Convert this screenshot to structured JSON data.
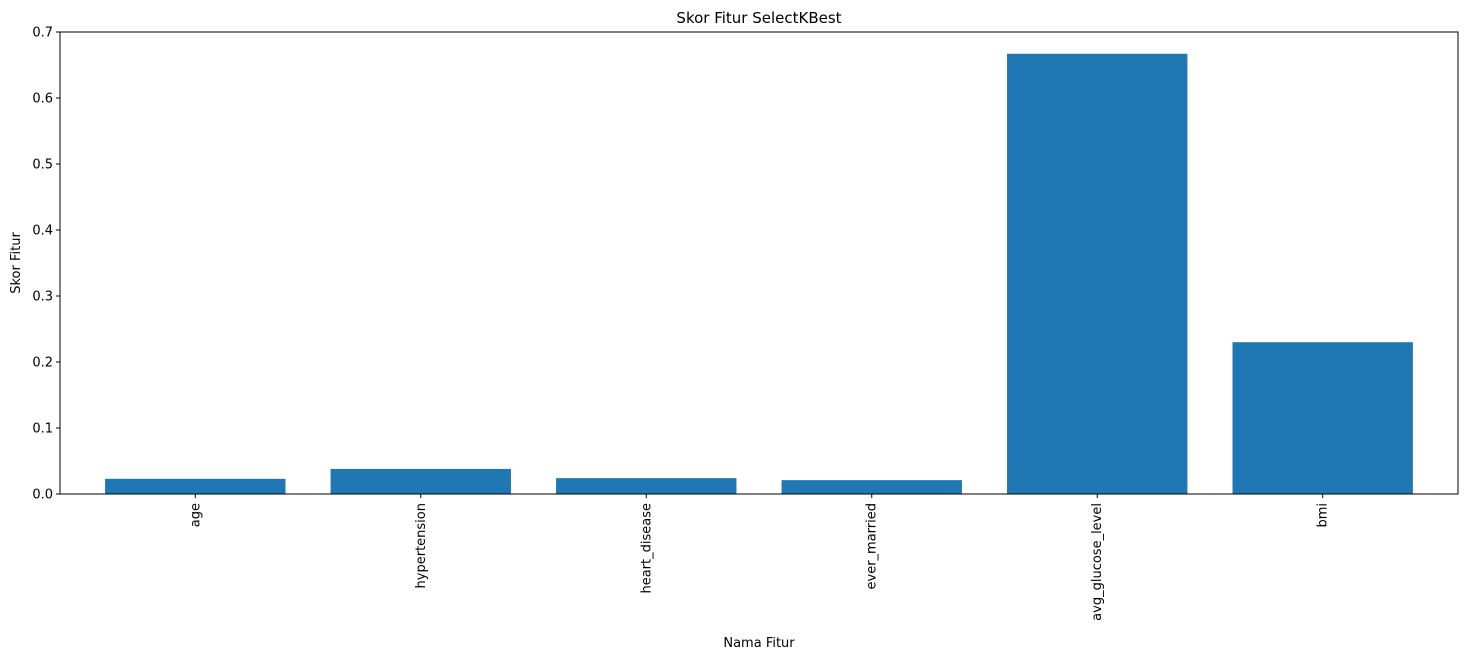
{
  "chart_data": {
    "type": "bar",
    "title": "Skor Fitur SelectKBest",
    "xlabel": "Nama Fitur",
    "ylabel": "Skor Fitur",
    "categories": [
      "age",
      "hypertension",
      "heart_disease",
      "ever_married",
      "avg_glucose_level",
      "bmi"
    ],
    "values": [
      0.023,
      0.038,
      0.024,
      0.021,
      0.667,
      0.23
    ],
    "ylim": [
      0,
      0.7
    ],
    "yticks": [
      "0.0",
      "0.1",
      "0.2",
      "0.3",
      "0.4",
      "0.5",
      "0.6",
      "0.7"
    ],
    "bar_color": "#1f77b4",
    "grid": false,
    "legend": false
  }
}
